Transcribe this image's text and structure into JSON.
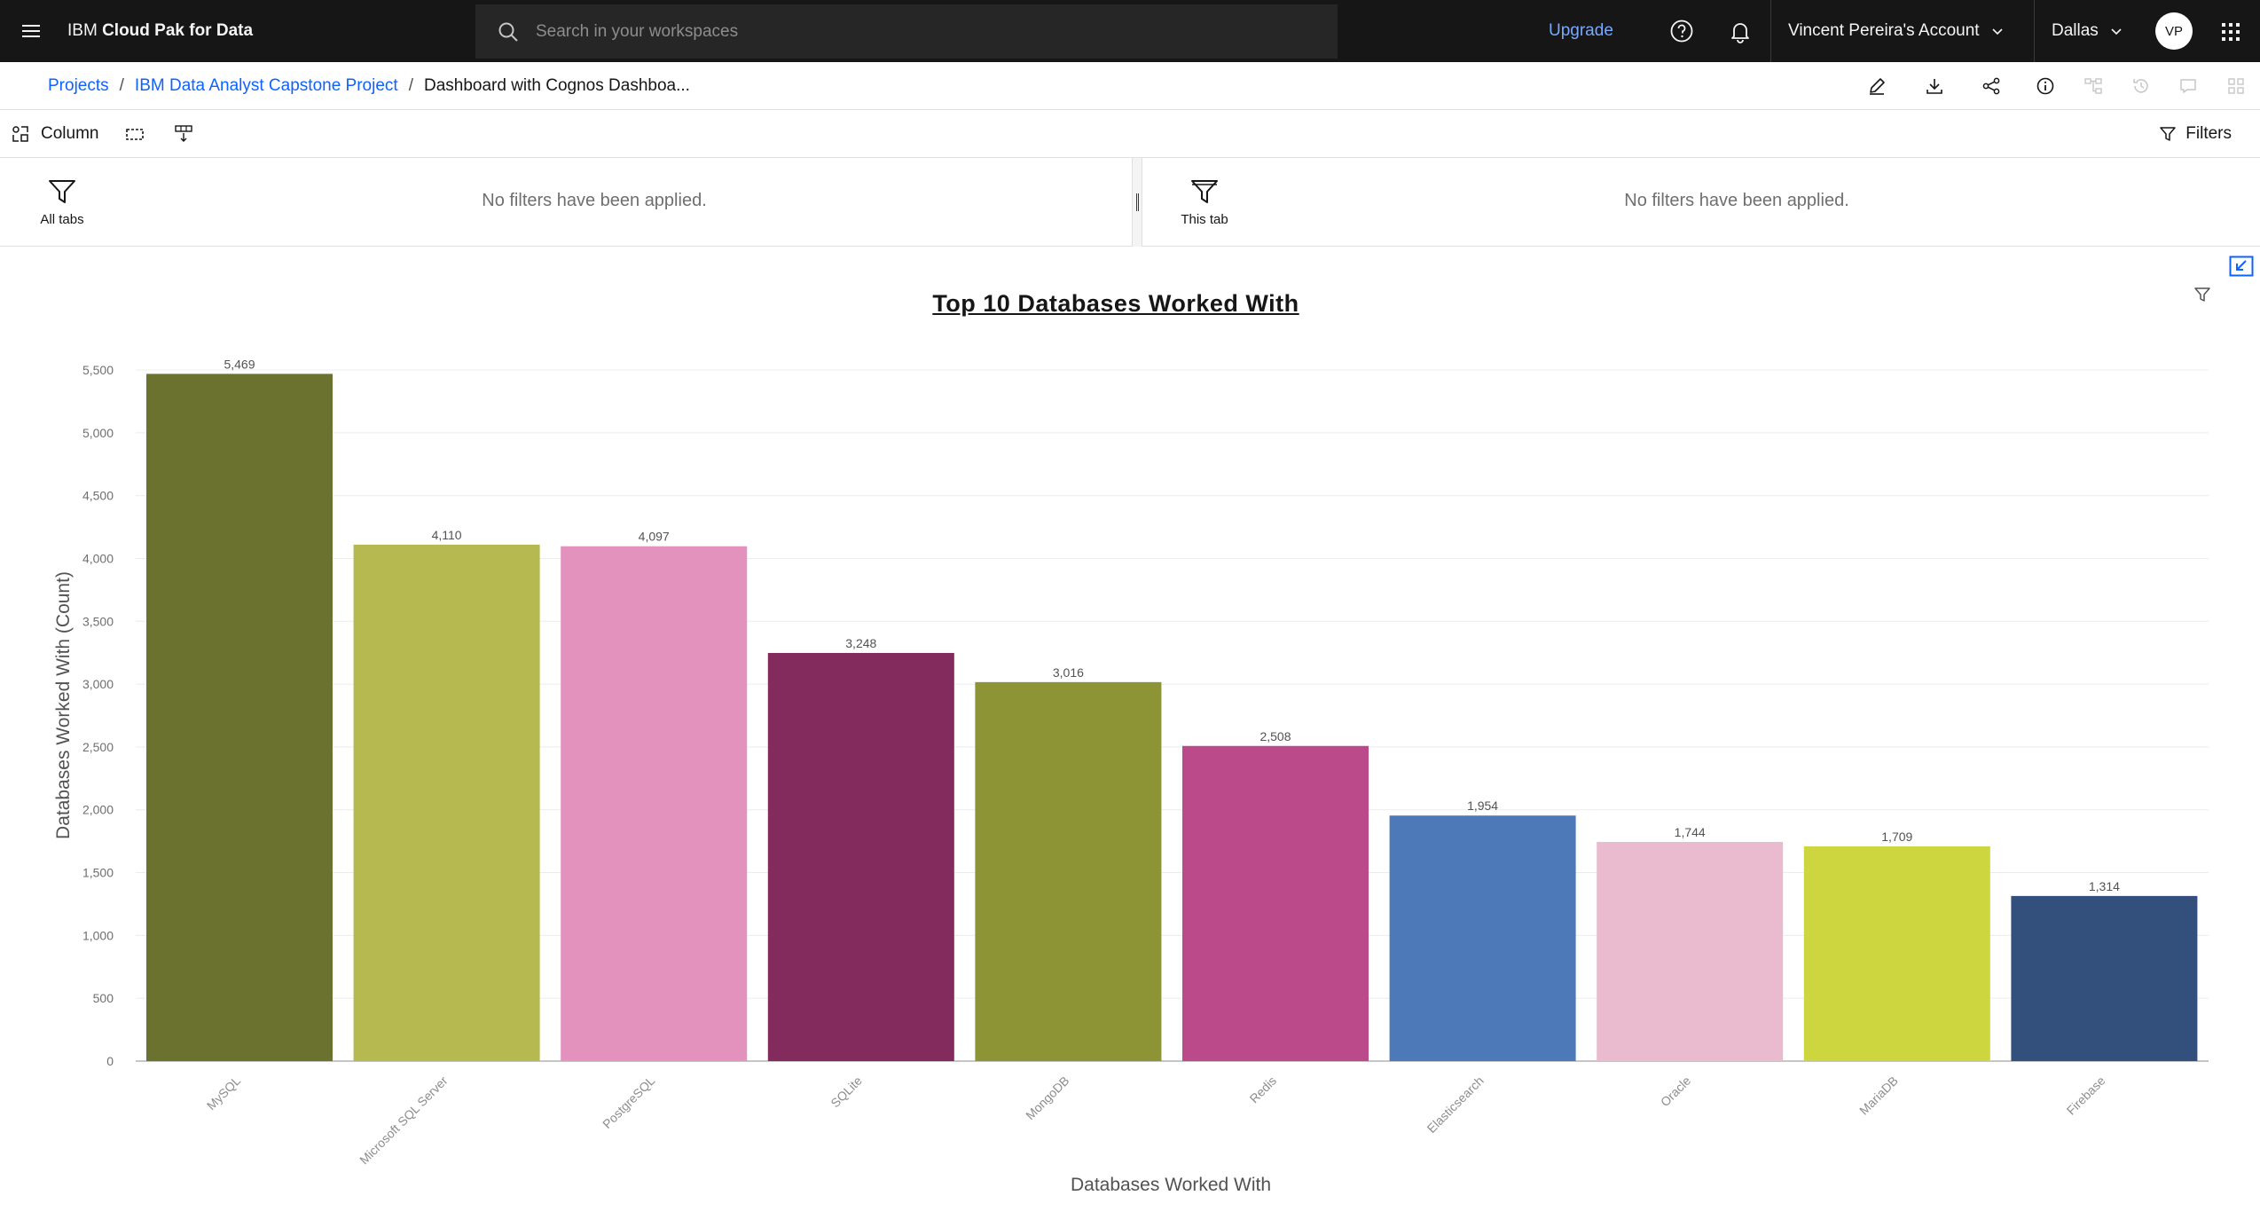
{
  "topbar": {
    "app_name_prefix": "IBM",
    "app_name_main": "Cloud Pak for Data",
    "search_placeholder": "Search in your workspaces",
    "upgrade_label": "Upgrade",
    "account_label": "Vincent Pereira's Account",
    "region_label": "Dallas",
    "avatar_initials": "VP"
  },
  "breadcrumb": {
    "items": [
      "Projects",
      "IBM Data Analyst Capstone Project"
    ],
    "separator": "/",
    "current": "Dashboard with Cognos Dashboa..."
  },
  "toolbar": {
    "column_label": "Column",
    "filters_label": "Filters"
  },
  "filterbar": {
    "all_tabs_label": "All tabs",
    "this_tab_label": "This tab",
    "all_tabs_message": "No filters have been applied.",
    "this_tab_message": "No filters have been applied."
  },
  "colors": {
    "accent": "#0f62fe",
    "topbar_bg": "#161616",
    "upgrade": "#78a9ff"
  },
  "chart_data": {
    "type": "bar",
    "title": "Top 10 Databases Worked With",
    "xlabel": "Databases Worked With",
    "ylabel": "Databases Worked With (Count)",
    "ylim": [
      0,
      5500
    ],
    "yticks": [
      0,
      500,
      1000,
      1500,
      2000,
      2500,
      3000,
      3500,
      4000,
      4500,
      5000,
      5500
    ],
    "categories": [
      "MySQL",
      "Microsoft SQL Server",
      "PostgreSQL",
      "SQLite",
      "MongoDB",
      "Redis",
      "Elasticsearch",
      "Oracle",
      "MariaDB",
      "Firebase"
    ],
    "values": [
      5469,
      4110,
      4097,
      3248,
      3016,
      2508,
      1954,
      1744,
      1709,
      1314
    ],
    "value_labels": [
      "5,469",
      "4,110",
      "4,097",
      "3,248",
      "3,016",
      "2,508",
      "1,954",
      "1,744",
      "1,709",
      "1,314"
    ],
    "colors": [
      "#6b712f",
      "#b5b94f",
      "#e391bd",
      "#822b5c",
      "#8c9436",
      "#bb4a8b",
      "#4e79b8",
      "#eabbcf",
      "#cdd63f",
      "#32507b"
    ],
    "grid": true
  }
}
